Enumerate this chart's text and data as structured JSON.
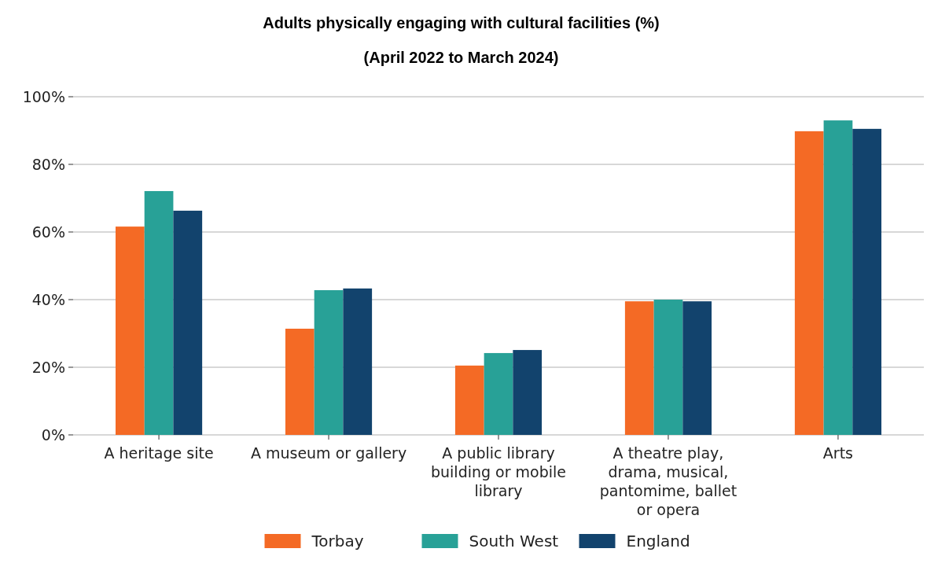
{
  "chart_data": {
    "type": "bar",
    "title": "Adults physically engaging with cultural facilities (%)",
    "subtitle": "(April 2022 to March 2024)",
    "categories": [
      "A heritage site",
      "A museum or gallery",
      "A public library building or mobile library",
      "A theatre play, drama, musical, pantomime, ballet or opera",
      "Arts"
    ],
    "series": [
      {
        "name": "Torbay",
        "color": "#f46a25",
        "values": [
          61.6,
          31.4,
          20.5,
          39.5,
          89.8
        ]
      },
      {
        "name": "South West",
        "color": "#28a197",
        "values": [
          72.1,
          42.8,
          24.2,
          40.0,
          93.0
        ]
      },
      {
        "name": "England",
        "color": "#12436d",
        "values": [
          66.3,
          43.3,
          25.1,
          39.5,
          90.5
        ]
      }
    ],
    "ylim": [
      0,
      100
    ],
    "yticks": [
      {
        "value": 0,
        "label": "0%"
      },
      {
        "value": 20,
        "label": "20%"
      },
      {
        "value": 40,
        "label": "40%"
      },
      {
        "value": 60,
        "label": "60%"
      },
      {
        "value": 80,
        "label": "80%"
      },
      {
        "value": 100,
        "label": "100%"
      }
    ],
    "grid": "y",
    "legend": "bottom"
  }
}
